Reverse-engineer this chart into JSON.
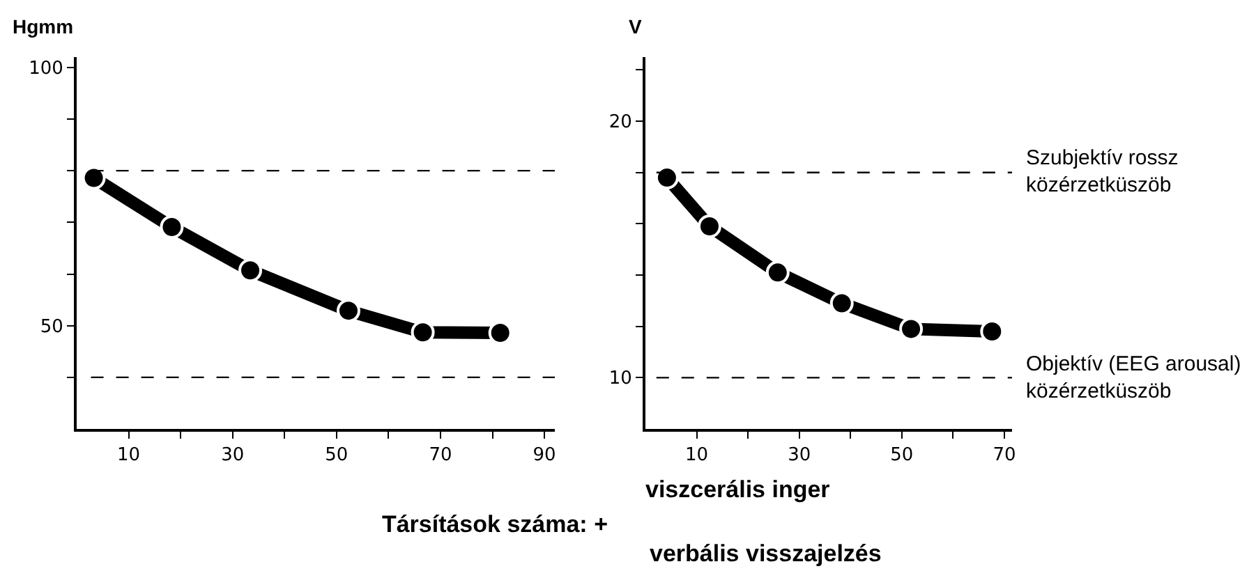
{
  "chart_data": [
    {
      "type": "line",
      "ylabel": "Hgmm",
      "x": [
        3.3,
        18.3,
        33.4,
        52.3,
        66.6,
        81.5
      ],
      "series": [
        {
          "color": "#000000",
          "values": [
            78.6,
            69.1,
            60.7,
            52.9,
            48.7,
            48.6
          ]
        }
      ],
      "xlim": [
        0,
        92
      ],
      "xticks": [
        10,
        {
          "value": 20,
          "label": null
        },
        30,
        {
          "value": 40,
          "label": null
        },
        50,
        {
          "value": 60,
          "label": null
        },
        70,
        {
          "value": 80,
          "label": null
        },
        90
      ],
      "ylim": [
        30,
        102
      ],
      "yticks": [
        {
          "value": 40,
          "label": null
        },
        50,
        {
          "value": 60,
          "label": null
        },
        {
          "value": 70,
          "label": null
        },
        {
          "value": 80,
          "label": null
        },
        {
          "value": 90,
          "label": null
        },
        100
      ],
      "ref_lines": [
        {
          "axis": "y",
          "value": 80,
          "line_style": "dashed"
        },
        {
          "axis": "y",
          "value": 40,
          "line_style": "dashed"
        }
      ],
      "marker": "circle",
      "line_style": "solid",
      "grid": false,
      "annotations": [
        "Társítások száma: +",
        "viszcerális inger",
        "verbális visszajelzés"
      ]
    },
    {
      "type": "line",
      "ylabel": "V",
      "x": [
        4.2,
        12.5,
        25.8,
        38.3,
        51.8,
        67.6
      ],
      "series": [
        {
          "color": "#000000",
          "values": [
            17.8,
            15.9,
            14.1,
            12.9,
            11.9,
            11.8
          ]
        }
      ],
      "xlim": [
        0,
        71.5
      ],
      "xticks": [
        10,
        {
          "value": 20,
          "label": null
        },
        30,
        {
          "value": 40,
          "label": null
        },
        50,
        {
          "value": 60,
          "label": null
        },
        70
      ],
      "ylim": [
        8,
        22.5
      ],
      "yticks": [
        10,
        {
          "value": 12,
          "label": null
        },
        {
          "value": 14,
          "label": null
        },
        {
          "value": 16,
          "label": null
        },
        {
          "value": 18,
          "label": null
        },
        20,
        {
          "value": 22,
          "label": null
        }
      ],
      "ref_lines": [
        {
          "axis": "y",
          "value": 18,
          "line_style": "dashed",
          "label": "Szubjektív rossz közérzetküszöb"
        },
        {
          "axis": "y",
          "value": 10,
          "line_style": "dashed",
          "label": "Objektív (EEG arousal) közérzetküszöb"
        }
      ],
      "marker": "circle",
      "line_style": "solid",
      "grid": false
    }
  ]
}
